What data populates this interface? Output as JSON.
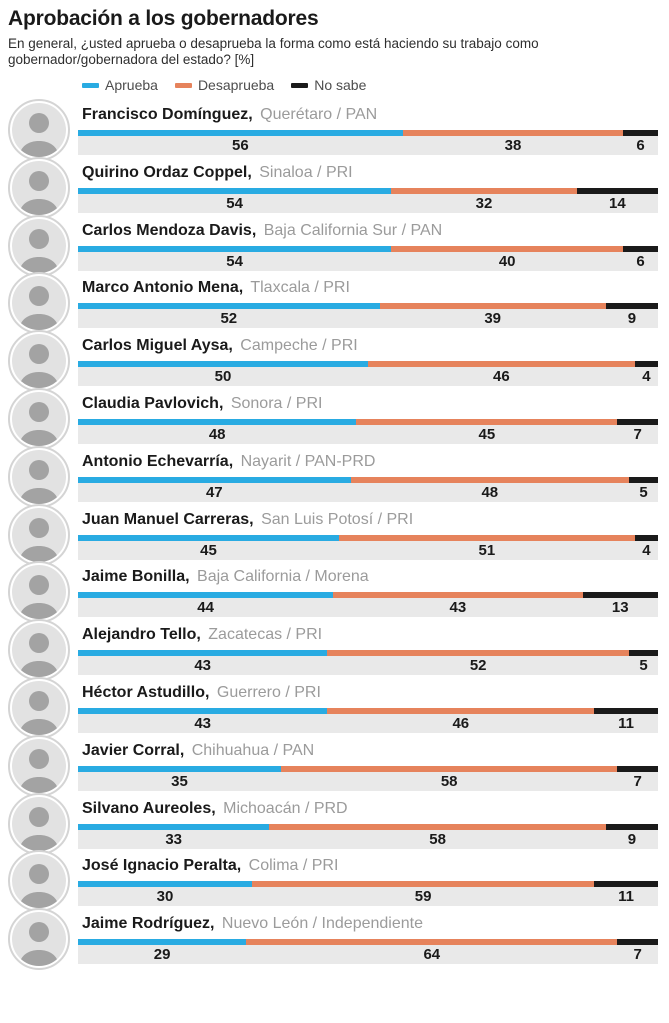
{
  "header": {
    "title": "Aprobación a los gobernadores",
    "subtitle": "En general, ¿usted aprueba o desaprueba la forma como está haciendo su trabajo como gobernador/gobernadora del estado? [%]"
  },
  "legend": {
    "items": [
      {
        "label": "Aprueba",
        "color": "#29abe2"
      },
      {
        "label": "Desaprueba",
        "color": "#e6835c"
      },
      {
        "label": "No sabe",
        "color": "#1a1a1a"
      }
    ]
  },
  "colors": {
    "aprueba": "#29abe2",
    "desaprueba": "#e6835c",
    "no_sabe": "#1a1a1a",
    "band_background": "#e9e9e9",
    "detail_text": "#9b9b9b"
  },
  "chart_data": {
    "type": "bar",
    "orientation": "horizontal",
    "stacked": true,
    "unit": "%",
    "xlim": [
      0,
      100
    ],
    "title": "Aprobación a los gobernadores",
    "series": [
      "Aprueba",
      "Desaprueba",
      "No sabe"
    ],
    "series_colors": [
      "#29abe2",
      "#e6835c",
      "#1a1a1a"
    ],
    "rows": [
      {
        "name": "Francisco Domínguez,",
        "detail": "Querétaro / PAN",
        "values": [
          56,
          38,
          6
        ]
      },
      {
        "name": "Quirino Ordaz Coppel,",
        "detail": "Sinaloa / PRI",
        "values": [
          54,
          32,
          14
        ]
      },
      {
        "name": "Carlos Mendoza Davis,",
        "detail": "Baja California Sur / PAN",
        "values": [
          54,
          40,
          6
        ]
      },
      {
        "name": "Marco Antonio Mena,",
        "detail": "Tlaxcala / PRI",
        "values": [
          52,
          39,
          9
        ]
      },
      {
        "name": "Carlos Miguel Aysa,",
        "detail": "Campeche / PRI",
        "values": [
          50,
          46,
          4
        ]
      },
      {
        "name": "Claudia Pavlovich,",
        "detail": "Sonora / PRI",
        "values": [
          48,
          45,
          7
        ]
      },
      {
        "name": "Antonio Echevarría,",
        "detail": "Nayarit / PAN-PRD",
        "values": [
          47,
          48,
          5
        ]
      },
      {
        "name": "Juan Manuel Carreras,",
        "detail": "San Luis Potosí / PRI",
        "values": [
          45,
          51,
          4
        ]
      },
      {
        "name": "Jaime Bonilla,",
        "detail": "Baja California / Morena",
        "values": [
          44,
          43,
          13
        ]
      },
      {
        "name": "Alejandro Tello,",
        "detail": "Zacatecas / PRI",
        "values": [
          43,
          52,
          5
        ]
      },
      {
        "name": "Héctor Astudillo,",
        "detail": "Guerrero / PRI",
        "values": [
          43,
          46,
          11
        ]
      },
      {
        "name": "Javier Corral,",
        "detail": "Chihuahua / PAN",
        "values": [
          35,
          58,
          7
        ]
      },
      {
        "name": "Silvano Aureoles,",
        "detail": "Michoacán / PRD",
        "values": [
          33,
          58,
          9
        ]
      },
      {
        "name": "José Ignacio Peralta,",
        "detail": "Colima / PRI",
        "values": [
          30,
          59,
          11
        ]
      },
      {
        "name": "Jaime Rodríguez,",
        "detail": "Nuevo León / Independiente",
        "values": [
          29,
          64,
          7
        ]
      }
    ]
  }
}
